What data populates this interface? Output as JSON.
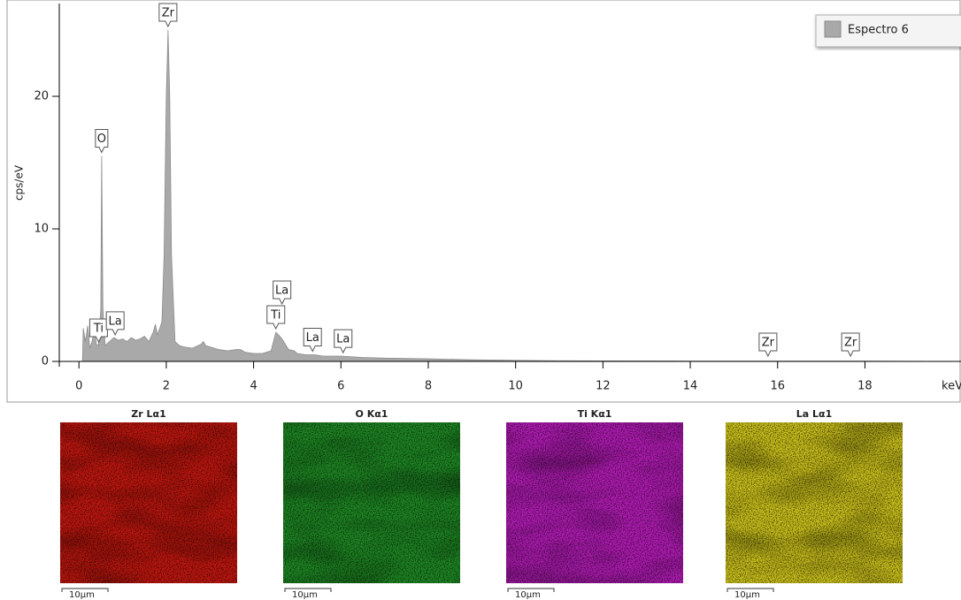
{
  "chart_data": {
    "type": "area",
    "y_label": "cps/eV",
    "x_label": "keV",
    "x": [
      0.08,
      0.1,
      0.15,
      0.2,
      0.25,
      0.3,
      0.35,
      0.4,
      0.45,
      0.5,
      0.52,
      0.55,
      0.6,
      0.7,
      0.8,
      0.9,
      1.0,
      1.1,
      1.2,
      1.3,
      1.4,
      1.5,
      1.6,
      1.7,
      1.75,
      1.8,
      1.9,
      1.95,
      2.0,
      2.04,
      2.08,
      2.12,
      2.2,
      2.3,
      2.4,
      2.6,
      2.8,
      2.85,
      2.9,
      3.0,
      3.2,
      3.4,
      3.6,
      3.7,
      3.8,
      4.0,
      4.2,
      4.4,
      4.51,
      4.6,
      4.65,
      4.8,
      4.93,
      5.0,
      5.2,
      5.4,
      5.6,
      6.0,
      6.5,
      7,
      8,
      9,
      10,
      11,
      12,
      14,
      16,
      18,
      20.2
    ],
    "series": [
      {
        "name": "Espectro 6",
        "color": "#a9a9a9",
        "values": [
          0,
          2.5,
          1.5,
          2.7,
          1.0,
          1.5,
          2.3,
          1.3,
          1.2,
          4,
          15.5,
          4,
          1.2,
          1.5,
          1.8,
          1.6,
          1.7,
          1.5,
          1.8,
          1.6,
          1.7,
          1.9,
          1.5,
          2.2,
          2.8,
          2.0,
          3.0,
          8,
          20,
          25,
          20,
          8,
          1.5,
          1.2,
          1.1,
          1.0,
          1.3,
          1.5,
          1.2,
          1.1,
          0.9,
          0.8,
          0.9,
          0.9,
          0.7,
          0.6,
          0.6,
          0.8,
          2.2,
          1.9,
          1.7,
          0.9,
          0.8,
          0.6,
          0.5,
          0.5,
          0.4,
          0.4,
          0.3,
          0.25,
          0.2,
          0.12,
          0.08,
          0.05,
          0.04,
          0.03,
          0.02,
          0.02,
          0
        ]
      }
    ],
    "xlim": [
      -0.45,
      20.2
    ],
    "ylim": [
      0,
      27
    ],
    "xticks": [
      0,
      2,
      4,
      6,
      8,
      10,
      12,
      14,
      16,
      18
    ],
    "yticks": [
      0,
      10,
      20
    ],
    "legend": "top-right",
    "annotations": [
      {
        "text": "Ti",
        "x": 0.45
      },
      {
        "text": "O",
        "x": 0.52
      },
      {
        "text": "La",
        "x": 0.83
      },
      {
        "text": "Zr",
        "x": 2.04
      },
      {
        "text": "Ti",
        "x": 4.51
      },
      {
        "text": "La",
        "x": 4.65
      },
      {
        "text": "La",
        "x": 5.35
      },
      {
        "text": "La",
        "x": 6.05
      },
      {
        "text": "Zr",
        "x": 15.78
      },
      {
        "text": "Zr",
        "x": 17.67
      }
    ]
  },
  "maps": [
    {
      "title": "Zr Lα1",
      "color": "#c4170f",
      "scale_label": "10μm"
    },
    {
      "title": "O Kα1",
      "color": "#1f8a24",
      "scale_label": "10μm"
    },
    {
      "title": "Ti Kα1",
      "color": "#b51cb8",
      "scale_label": "10μm"
    },
    {
      "title": "La Lα1",
      "color": "#cfc51c",
      "scale_label": "10μm"
    }
  ]
}
